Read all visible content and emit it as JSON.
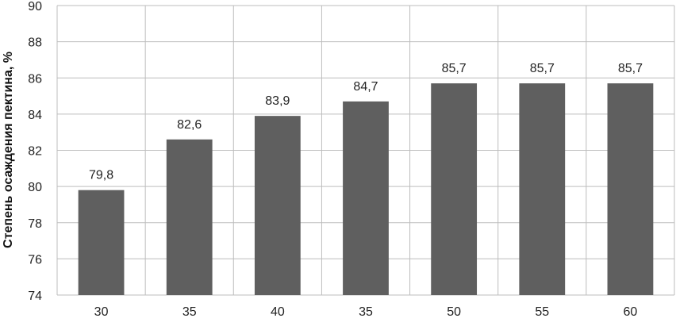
{
  "chart_data": {
    "type": "bar",
    "categories": [
      "30",
      "35",
      "40",
      "35",
      "50",
      "55",
      "60"
    ],
    "values": [
      79.8,
      82.6,
      83.9,
      84.7,
      85.7,
      85.7,
      85.7
    ],
    "value_labels": [
      "79,8",
      "82,6",
      "83,9",
      "84,7",
      "85,7",
      "85,7",
      "85,7"
    ],
    "ylabel": "Степень осаждения пектина, %",
    "xlabel": "",
    "ylim": [
      74,
      90
    ],
    "yticks": [
      74,
      76,
      78,
      80,
      82,
      84,
      86,
      88,
      90
    ],
    "grid": true,
    "bar_color": "#5f5f5f",
    "grid_color": "#bdbdbd"
  }
}
